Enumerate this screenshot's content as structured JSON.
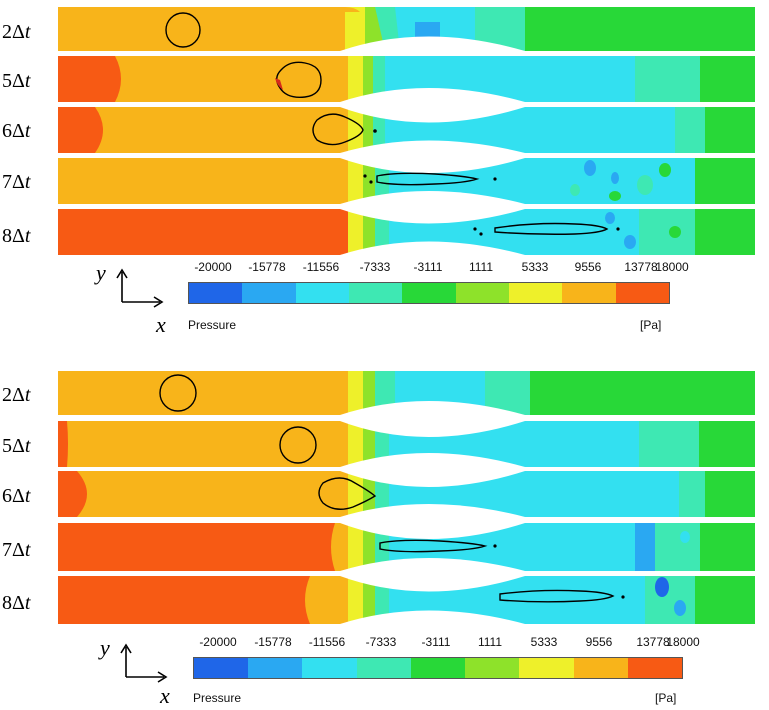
{
  "panels": [
    {
      "rows": [
        {
          "prefix": "2",
          "suffix": "t"
        },
        {
          "prefix": "5",
          "suffix": "t"
        },
        {
          "prefix": "6",
          "suffix": "t"
        },
        {
          "prefix": "7",
          "suffix": "t"
        },
        {
          "prefix": "8",
          "suffix": "t"
        }
      ],
      "legend": {
        "ticks": [
          "-20000",
          "-15778",
          "-11556",
          "-7333",
          "-3111",
          "1111",
          "5333",
          "9556",
          "13778",
          "18000"
        ],
        "title": "Pressure",
        "unit": "[Pa]"
      },
      "axes": {
        "y": "y",
        "x": "x"
      }
    },
    {
      "rows": [
        {
          "prefix": "2",
          "suffix": "t"
        },
        {
          "prefix": "5",
          "suffix": "t"
        },
        {
          "prefix": "6",
          "suffix": "t"
        },
        {
          "prefix": "7",
          "suffix": "t"
        },
        {
          "prefix": "8",
          "suffix": "t"
        }
      ],
      "legend": {
        "ticks": [
          "-20000",
          "-15778",
          "-11556",
          "-7333",
          "-3111",
          "1111",
          "5333",
          "9556",
          "13778",
          "18000"
        ],
        "title": "Pressure",
        "unit": "[Pa]"
      },
      "axes": {
        "y": "y",
        "x": "x"
      }
    }
  ],
  "delta_symbol": "Δ",
  "colors": {
    "scale": [
      "#1f66e8",
      "#2aa8f2",
      "#33e0f0",
      "#3ee8b3",
      "#28d838",
      "#8ee22a",
      "#eef02a",
      "#f8b41a",
      "#f75a14"
    ],
    "red": "#f75a14",
    "orange": "#f8b41a",
    "yellow": "#eef02a",
    "lime": "#8ee22a",
    "green": "#28d838",
    "teal": "#3ee8b3",
    "cyan": "#33e0f0",
    "lightblue": "#2aa8f2",
    "blue": "#1f66e8"
  }
}
